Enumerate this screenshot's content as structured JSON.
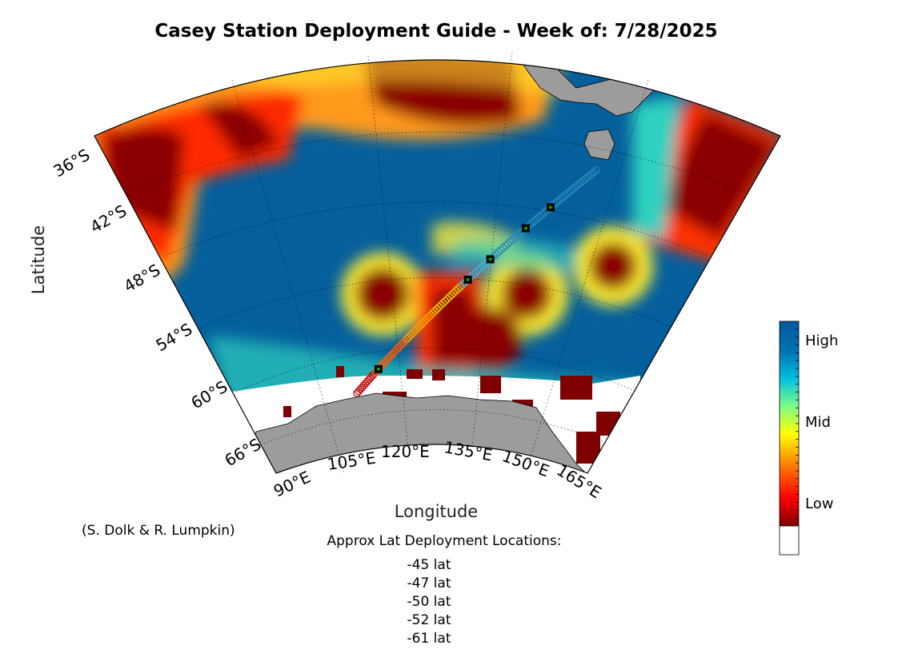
{
  "title": "Casey Station Deployment Guide - Week of: 7/28/2025",
  "axes": {
    "xlabel": "Longitude",
    "ylabel": "Latitude",
    "lon_ticks": [
      "90°E",
      "105°E",
      "120°E",
      "135°E",
      "150°E",
      "165°E"
    ],
    "lat_ticks": [
      "36°S",
      "42°S",
      "48°S",
      "54°S",
      "60°S",
      "66°S"
    ]
  },
  "credit": "(S. Dolk & R. Lumpkin)",
  "deployment": {
    "title": "Approx Lat Deployment Locations:",
    "lat_suffix": "lat",
    "locations": [
      -45,
      -47,
      -50,
      -52,
      -61
    ]
  },
  "colorbar": {
    "labels": {
      "high": "High",
      "mid": "Mid",
      "low": "Low"
    },
    "colors": [
      "#800000",
      "#ff0000",
      "#ff8000",
      "#ffff00",
      "#80ff80",
      "#00c0e0",
      "#0070b0",
      "#005a9c"
    ]
  },
  "colors": {
    "land": "#9c9c9c",
    "high": "#045f9c",
    "low": "#7e0000",
    "track_marker": "#00aa00"
  }
}
